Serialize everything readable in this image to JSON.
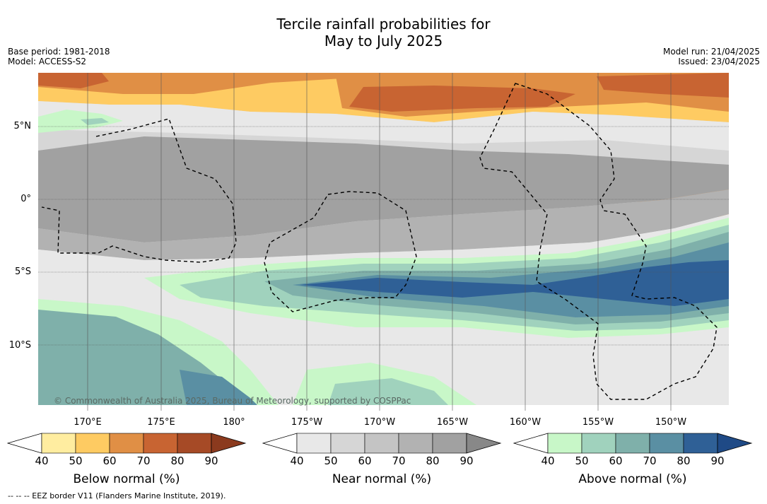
{
  "title": {
    "line1": "Tercile rainfall probabilities for",
    "line2": "May to July 2025"
  },
  "meta": {
    "base_period": "Base period: 1981-2018",
    "model": "Model: ACCESS-S2",
    "model_run": "Model run: 21/04/2025",
    "issued": "Issued: 23/04/2025"
  },
  "map": {
    "lat_labels": [
      "5°N",
      "0°",
      "5°S",
      "10°S"
    ],
    "lon_labels": [
      "170°E",
      "175°E",
      "180°",
      "175°W",
      "170°W",
      "165°W",
      "160°W",
      "155°W",
      "150°W"
    ],
    "copyright": "© Commonwealth of Australia 2025, Bureau of Meteorology, supported by COSPPac"
  },
  "colorbars": [
    {
      "label": "Below normal (%)",
      "ticks": [
        "40",
        "50",
        "60",
        "70",
        "80",
        "90"
      ],
      "colors": [
        "#ffffff",
        "#ffeda0",
        "#fecb62",
        "#e08f45",
        "#c86432",
        "#a64a26",
        "#8b3a1e"
      ]
    },
    {
      "label": "Near normal (%)",
      "ticks": [
        "40",
        "50",
        "60",
        "70",
        "80",
        "90"
      ],
      "colors": [
        "#ffffff",
        "#e8e8e8",
        "#d6d6d6",
        "#c4c4c4",
        "#b2b2b2",
        "#a1a1a1",
        "#888888"
      ]
    },
    {
      "label": "Above normal (%)",
      "ticks": [
        "40",
        "50",
        "60",
        "70",
        "80",
        "90"
      ],
      "colors": [
        "#ffffff",
        "#c8f7c8",
        "#a0d2bd",
        "#7fb0aa",
        "#5a8fa3",
        "#2f6096",
        "#1f4a86"
      ]
    }
  ],
  "footer": "--  --  -- EEZ border V11 (Flanders Marine Institute, 2019)."
}
